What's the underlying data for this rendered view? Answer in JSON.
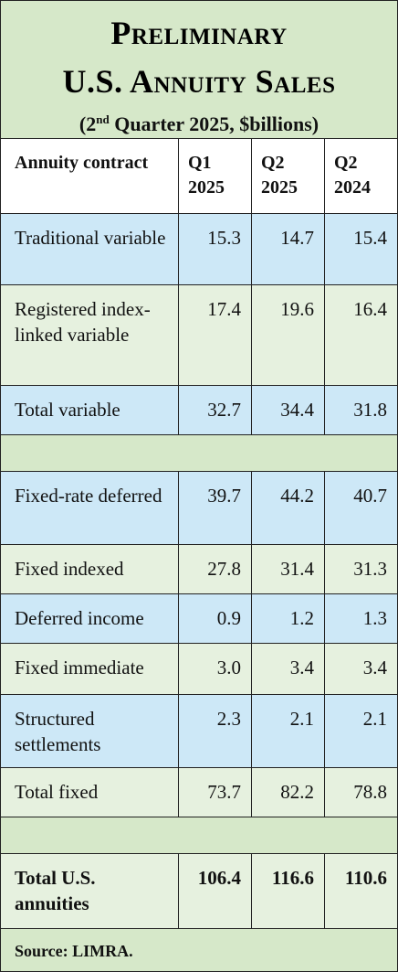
{
  "title": {
    "line1": "Preliminary",
    "line2": "U.S. Annuity Sales",
    "subtitle_pre": "(2",
    "subtitle_sup": "nd",
    "subtitle_post": " Quarter 2025, $billions)"
  },
  "header": {
    "col0": "Annuity contract",
    "col1": "Q1 2025",
    "col2": "Q2 2025",
    "col3": "Q2 2024"
  },
  "rows": [
    {
      "label": "Traditional variable",
      "q1_2025": "15.3",
      "q2_2025": "14.7",
      "q2_2024": "15.4"
    },
    {
      "label": "Registered index-linked variable",
      "q1_2025": "17.4",
      "q2_2025": "19.6",
      "q2_2024": "16.4"
    },
    {
      "label": "Total variable",
      "q1_2025": "32.7",
      "q2_2025": "34.4",
      "q2_2024": "31.8"
    },
    {
      "label": "Fixed-rate deferred",
      "q1_2025": "39.7",
      "q2_2025": "44.2",
      "q2_2024": "40.7"
    },
    {
      "label": "Fixed indexed",
      "q1_2025": "27.8",
      "q2_2025": "31.4",
      "q2_2024": "31.3"
    },
    {
      "label": "Deferred income",
      "q1_2025": "0.9",
      "q2_2025": "1.2",
      "q2_2024": "1.3"
    },
    {
      "label": "Fixed immediate",
      "q1_2025": "3.0",
      "q2_2025": "3.4",
      "q2_2024": "3.4"
    },
    {
      "label": "Structured settlements",
      "q1_2025": "2.3",
      "q2_2025": "2.1",
      "q2_2024": "2.1"
    },
    {
      "label": "Total fixed",
      "q1_2025": "73.7",
      "q2_2025": "82.2",
      "q2_2024": "78.8"
    },
    {
      "label": "Total U.S. annuities",
      "q1_2025": "106.4",
      "q2_2025": "116.6",
      "q2_2024": "110.6"
    }
  ],
  "source": "Source: LIMRA.",
  "colors": {
    "header_green": "#d6e8c9",
    "row_blue": "#cde8f7",
    "row_green": "#e6f1df"
  }
}
